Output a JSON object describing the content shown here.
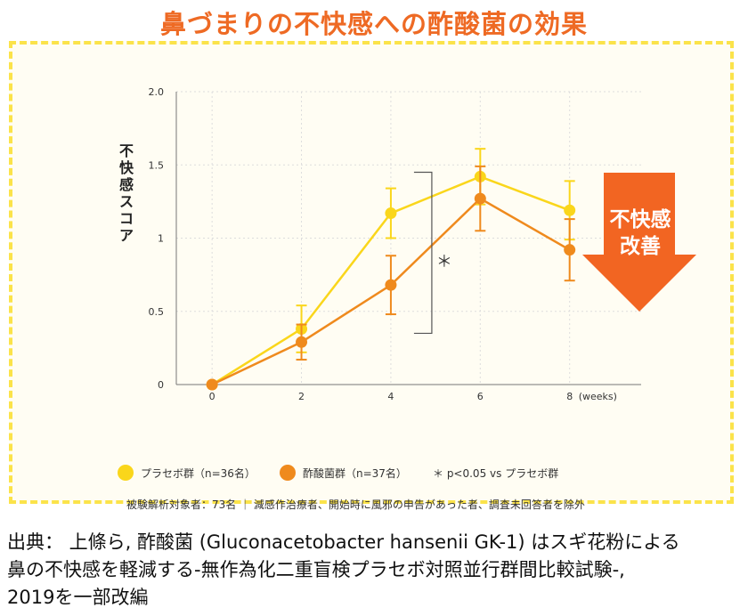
{
  "title": "鼻づまりの不快感への酢酸菌の効果",
  "colors": {
    "title": "#ee6a24",
    "placebo": "#fad61b",
    "acetic": "#ef8a1d",
    "arrow": "#f26522",
    "border": "#fbe34a"
  },
  "chart_data": {
    "type": "line",
    "x": [
      0,
      2,
      4,
      6,
      8
    ],
    "xlim": [
      -0.8,
      9.6
    ],
    "ylim": [
      0,
      2.0
    ],
    "xticks": [
      "0",
      "2",
      "4",
      "6",
      "8"
    ],
    "x_unit": "(weeks)",
    "yticks": [
      "0",
      "0.5",
      "1",
      "1.5",
      "2.0"
    ],
    "ytick_values": [
      0,
      0.5,
      1,
      1.5,
      2.0
    ],
    "ylabel": "不快感スコア",
    "series": [
      {
        "name": "プラセボ群（n=36名）",
        "values": [
          0,
          0.38,
          1.17,
          1.42,
          1.19
        ],
        "err": [
          0,
          0.16,
          0.17,
          0.19,
          0.2
        ]
      },
      {
        "name": "酢酸菌群（n=37名）",
        "values": [
          0,
          0.29,
          0.68,
          1.27,
          0.92
        ],
        "err": [
          0,
          0.12,
          0.2,
          0.22,
          0.21
        ]
      }
    ],
    "significance_mark": "＊",
    "significance_note": "＊ p<0.05 vs プラセボ群",
    "arrow_label": [
      "不快感",
      "改善"
    ]
  },
  "note": "被験解析対象者：73名 ｜ 減感作治療者、開始時に風邪の申告があった者、調査未回答者を除外",
  "source": [
    "出典： 上條ら, 酢酸菌 (Gluconacetobacter hansenii GK-1) はスギ花粉による",
    "鼻の不快感を軽減する-無作為化二重盲検プラセボ対照並行群間比較試験-,",
    "2019を一部改編"
  ]
}
